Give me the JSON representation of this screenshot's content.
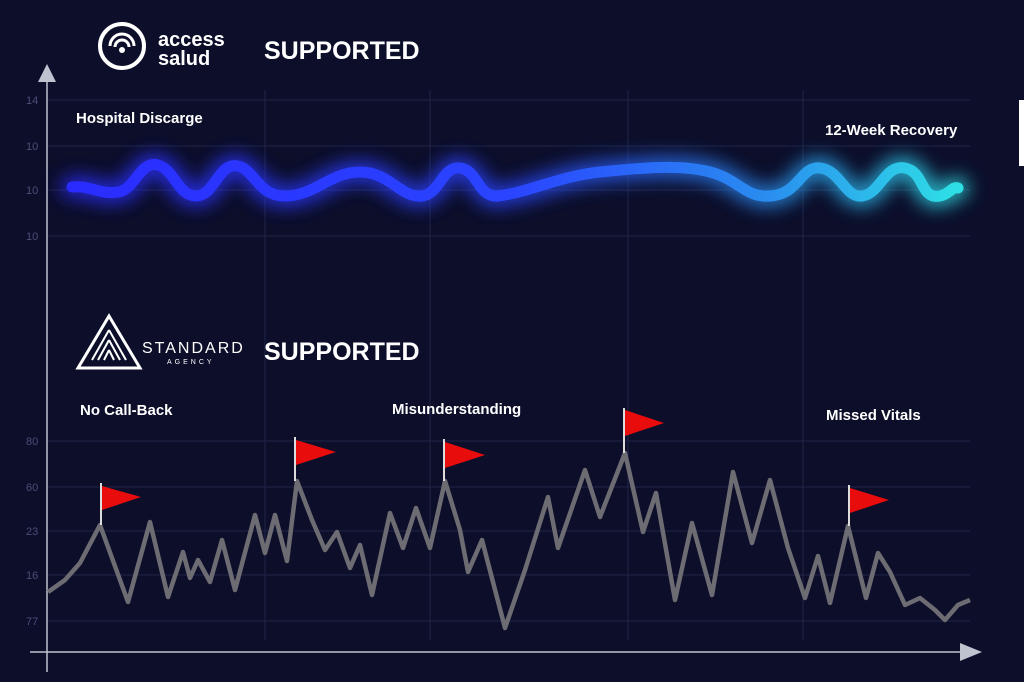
{
  "top_section": {
    "logo": {
      "line1": "access",
      "line2": "salud"
    },
    "heading": "SUPPORTED",
    "start_label": "Hospital Discarge",
    "end_label": "12-Week Recovery",
    "axis_labels": [
      "14",
      "10",
      "10",
      "10"
    ]
  },
  "bottom_section": {
    "logo": {
      "line1": "STANDARD",
      "line2": "AGENCY"
    },
    "heading": "SUPPORTED",
    "annotations": [
      "No Call-Back",
      "Misunderstanding",
      "Missed Vitals"
    ],
    "axis_labels": [
      "80",
      "60",
      "23",
      "16",
      "77"
    ]
  }
}
